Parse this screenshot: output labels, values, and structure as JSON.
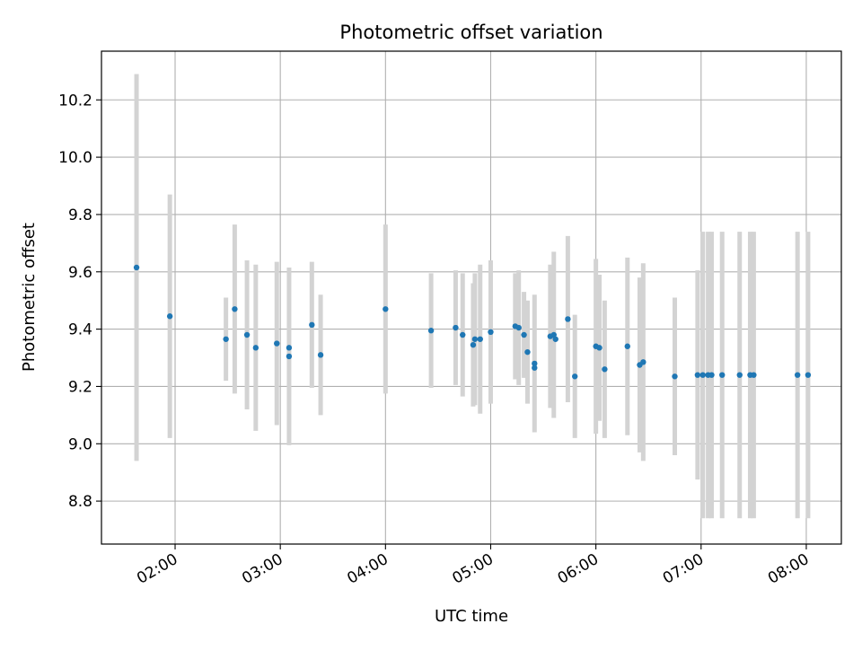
{
  "chart_data": {
    "type": "scatter",
    "title": "Photometric offset variation",
    "xlabel": "UTC time",
    "ylabel": "Photometric offset",
    "x_ticks": [
      "02:00",
      "03:00",
      "04:00",
      "05:00",
      "06:00",
      "07:00",
      "08:00"
    ],
    "y_ticks": [
      "8.8",
      "9.0",
      "9.2",
      "9.4",
      "9.6",
      "9.8",
      "10.0",
      "10.2"
    ],
    "xlim": [
      "01:18",
      "08:20"
    ],
    "ylim": [
      8.65,
      10.37
    ],
    "grid": true,
    "colors": {
      "points": "#1f77b4",
      "errorbars": "#d3d3d3",
      "grid": "#b0b0b0"
    },
    "series": [
      {
        "points": [
          {
            "x": "01:38",
            "y": 9.615,
            "yerr": 0.675
          },
          {
            "x": "01:57",
            "y": 9.445,
            "yerr": 0.425
          },
          {
            "x": "02:29",
            "y": 9.365,
            "yerr": 0.145
          },
          {
            "x": "02:34",
            "y": 9.47,
            "yerr": 0.295
          },
          {
            "x": "02:41",
            "y": 9.38,
            "yerr": 0.26
          },
          {
            "x": "02:46",
            "y": 9.335,
            "yerr": 0.29
          },
          {
            "x": "02:58",
            "y": 9.35,
            "yerr": 0.285
          },
          {
            "x": "03:05",
            "y": 9.305,
            "yerr": 0.31
          },
          {
            "x": "03:05",
            "y": 9.335,
            "yerr": 0.0
          },
          {
            "x": "03:18",
            "y": 9.415,
            "yerr": 0.22
          },
          {
            "x": "03:23",
            "y": 9.31,
            "yerr": 0.21
          },
          {
            "x": "04:00",
            "y": 9.47,
            "yerr": 0.295
          },
          {
            "x": "04:26",
            "y": 9.395,
            "yerr": 0.2
          },
          {
            "x": "04:40",
            "y": 9.405,
            "yerr": 0.2
          },
          {
            "x": "04:44",
            "y": 9.38,
            "yerr": 0.215
          },
          {
            "x": "04:50",
            "y": 9.345,
            "yerr": 0.215
          },
          {
            "x": "04:51",
            "y": 9.365,
            "yerr": 0.23
          },
          {
            "x": "04:54",
            "y": 9.365,
            "yerr": 0.26
          },
          {
            "x": "05:00",
            "y": 9.39,
            "yerr": 0.25
          },
          {
            "x": "05:14",
            "y": 9.41,
            "yerr": 0.185
          },
          {
            "x": "05:16",
            "y": 9.405,
            "yerr": 0.2
          },
          {
            "x": "05:19",
            "y": 9.38,
            "yerr": 0.15
          },
          {
            "x": "05:21",
            "y": 9.32,
            "yerr": 0.18
          },
          {
            "x": "05:25",
            "y": 9.28,
            "yerr": 0.24
          },
          {
            "x": "05:25",
            "y": 9.265,
            "yerr": 0.0
          },
          {
            "x": "05:34",
            "y": 9.375,
            "yerr": 0.25
          },
          {
            "x": "05:36",
            "y": 9.38,
            "yerr": 0.29
          },
          {
            "x": "05:37",
            "y": 9.365,
            "yerr": 0.0
          },
          {
            "x": "05:44",
            "y": 9.435,
            "yerr": 0.29
          },
          {
            "x": "05:48",
            "y": 9.235,
            "yerr": 0.215
          },
          {
            "x": "06:00",
            "y": 9.34,
            "yerr": 0.305
          },
          {
            "x": "06:02",
            "y": 9.335,
            "yerr": 0.255
          },
          {
            "x": "06:05",
            "y": 9.26,
            "yerr": 0.24
          },
          {
            "x": "06:18",
            "y": 9.34,
            "yerr": 0.31
          },
          {
            "x": "06:25",
            "y": 9.275,
            "yerr": 0.305
          },
          {
            "x": "06:27",
            "y": 9.285,
            "yerr": 0.345
          },
          {
            "x": "06:45",
            "y": 9.235,
            "yerr": 0.275
          },
          {
            "x": "06:58",
            "y": 9.24,
            "yerr": 0.365
          },
          {
            "x": "07:01",
            "y": 9.24,
            "yerr": 0.5
          },
          {
            "x": "07:04",
            "y": 9.24,
            "yerr": 0.5
          },
          {
            "x": "07:06",
            "y": 9.24,
            "yerr": 0.5
          },
          {
            "x": "07:12",
            "y": 9.24,
            "yerr": 0.5
          },
          {
            "x": "07:22",
            "y": 9.24,
            "yerr": 0.5
          },
          {
            "x": "07:28",
            "y": 9.24,
            "yerr": 0.5
          },
          {
            "x": "07:30",
            "y": 9.24,
            "yerr": 0.5
          },
          {
            "x": "07:55",
            "y": 9.24,
            "yerr": 0.5
          },
          {
            "x": "08:01",
            "y": 9.24,
            "yerr": 0.5
          }
        ]
      }
    ]
  }
}
